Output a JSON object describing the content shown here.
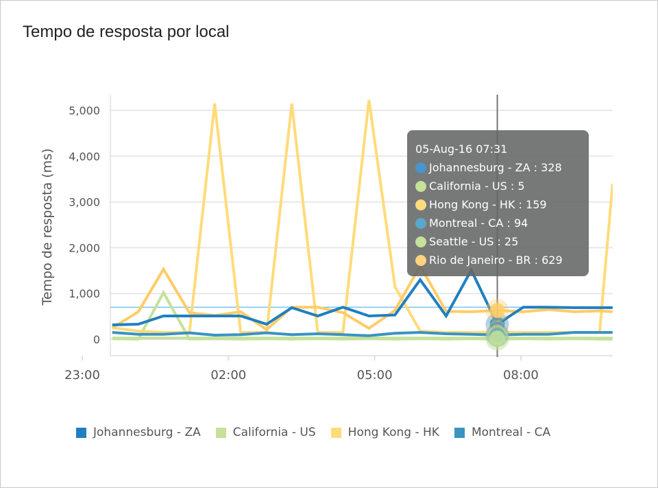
{
  "title": "Tempo de resposta por local",
  "chart_data": {
    "type": "line",
    "title": "Tempo de resposta por local",
    "xlabel": "",
    "ylabel": "Tempo de resposta (ms)",
    "ylim": [
      -360,
      5350
    ],
    "xlim": [
      "23:00",
      "09:53"
    ],
    "yticks": [
      "0",
      "1,000",
      "2,000",
      "3,000",
      "4,000",
      "5,000"
    ],
    "ytick_values": [
      0,
      1000,
      2000,
      3000,
      4000,
      5000
    ],
    "xticks": [
      "23:00",
      "02:00",
      "05:00",
      "08:00"
    ],
    "grid": true,
    "legend_position": "bottom",
    "x": [
      "23:37",
      "00:09",
      "00:40",
      "01:12",
      "01:43",
      "02:15",
      "02:47",
      "03:18",
      "03:50",
      "04:21",
      "04:53",
      "05:25",
      "05:56",
      "06:28",
      "06:59",
      "07:31",
      "08:03",
      "08:34",
      "09:06",
      "09:37",
      "09:53"
    ],
    "series": [
      {
        "name": "Johannesburg - ZA",
        "color": "#1f7fc1",
        "values": [
          314,
          330,
          509,
          509,
          509,
          509,
          330,
          690,
          509,
          700,
          509,
          530,
          1300,
          509,
          1510,
          328,
          700,
          700,
          690,
          690,
          690
        ]
      },
      {
        "name": "California - US",
        "color": "#c5e19a",
        "values": [
          10,
          5,
          1020,
          5,
          10,
          5,
          10,
          5,
          10,
          5,
          10,
          5,
          10,
          5,
          10,
          5,
          10,
          5,
          10,
          5,
          5
        ]
      },
      {
        "name": "Hong Kong - HK",
        "color": "#ffdb7a",
        "values": [
          250,
          180,
          150,
          150,
          5150,
          150,
          150,
          5150,
          150,
          150,
          5230,
          1150,
          180,
          150,
          150,
          159,
          150,
          150,
          150,
          150,
          3400
        ]
      },
      {
        "name": "Montreal - CA",
        "color": "#3a93c0",
        "values": [
          150,
          110,
          110,
          140,
          90,
          100,
          140,
          100,
          120,
          100,
          80,
          130,
          150,
          120,
          110,
          94,
          110,
          110,
          150,
          150,
          150
        ]
      },
      {
        "name": "Seattle - US",
        "color": "#c5e19a",
        "values": [
          25,
          25,
          25,
          25,
          25,
          25,
          25,
          25,
          25,
          25,
          25,
          25,
          25,
          25,
          25,
          25,
          25,
          25,
          25,
          25,
          25
        ]
      },
      {
        "name": "Rio de Janeiro - BR",
        "color": "#ffcc66",
        "values": [
          250,
          600,
          1530,
          580,
          520,
          600,
          210,
          700,
          700,
          580,
          240,
          630,
          1600,
          610,
          600,
          629,
          600,
          650,
          600,
          620,
          600
        ]
      }
    ],
    "reference_line": {
      "value": 700,
      "color": "#7cc4f0"
    },
    "legend": [
      "Johannesburg - ZA",
      "California - US",
      "Hong Kong - HK",
      "Montreal - CA"
    ],
    "tooltip": {
      "time": "05-Aug-16 07:31",
      "items": [
        {
          "label": "Johannesburg - ZA : 328",
          "color": "#4a94cf"
        },
        {
          "label": "California - US : 5",
          "color": "#c5e19a"
        },
        {
          "label": "Hong Kong - HK : 159",
          "color": "#ffdb7a"
        },
        {
          "label": "Montreal - CA : 94",
          "color": "#5aa7cb"
        },
        {
          "label": "Seattle - US : 25",
          "color": "#c5e19a"
        },
        {
          "label": "Rio de Janeiro - BR : 629",
          "color": "#ffd27f"
        }
      ]
    }
  }
}
